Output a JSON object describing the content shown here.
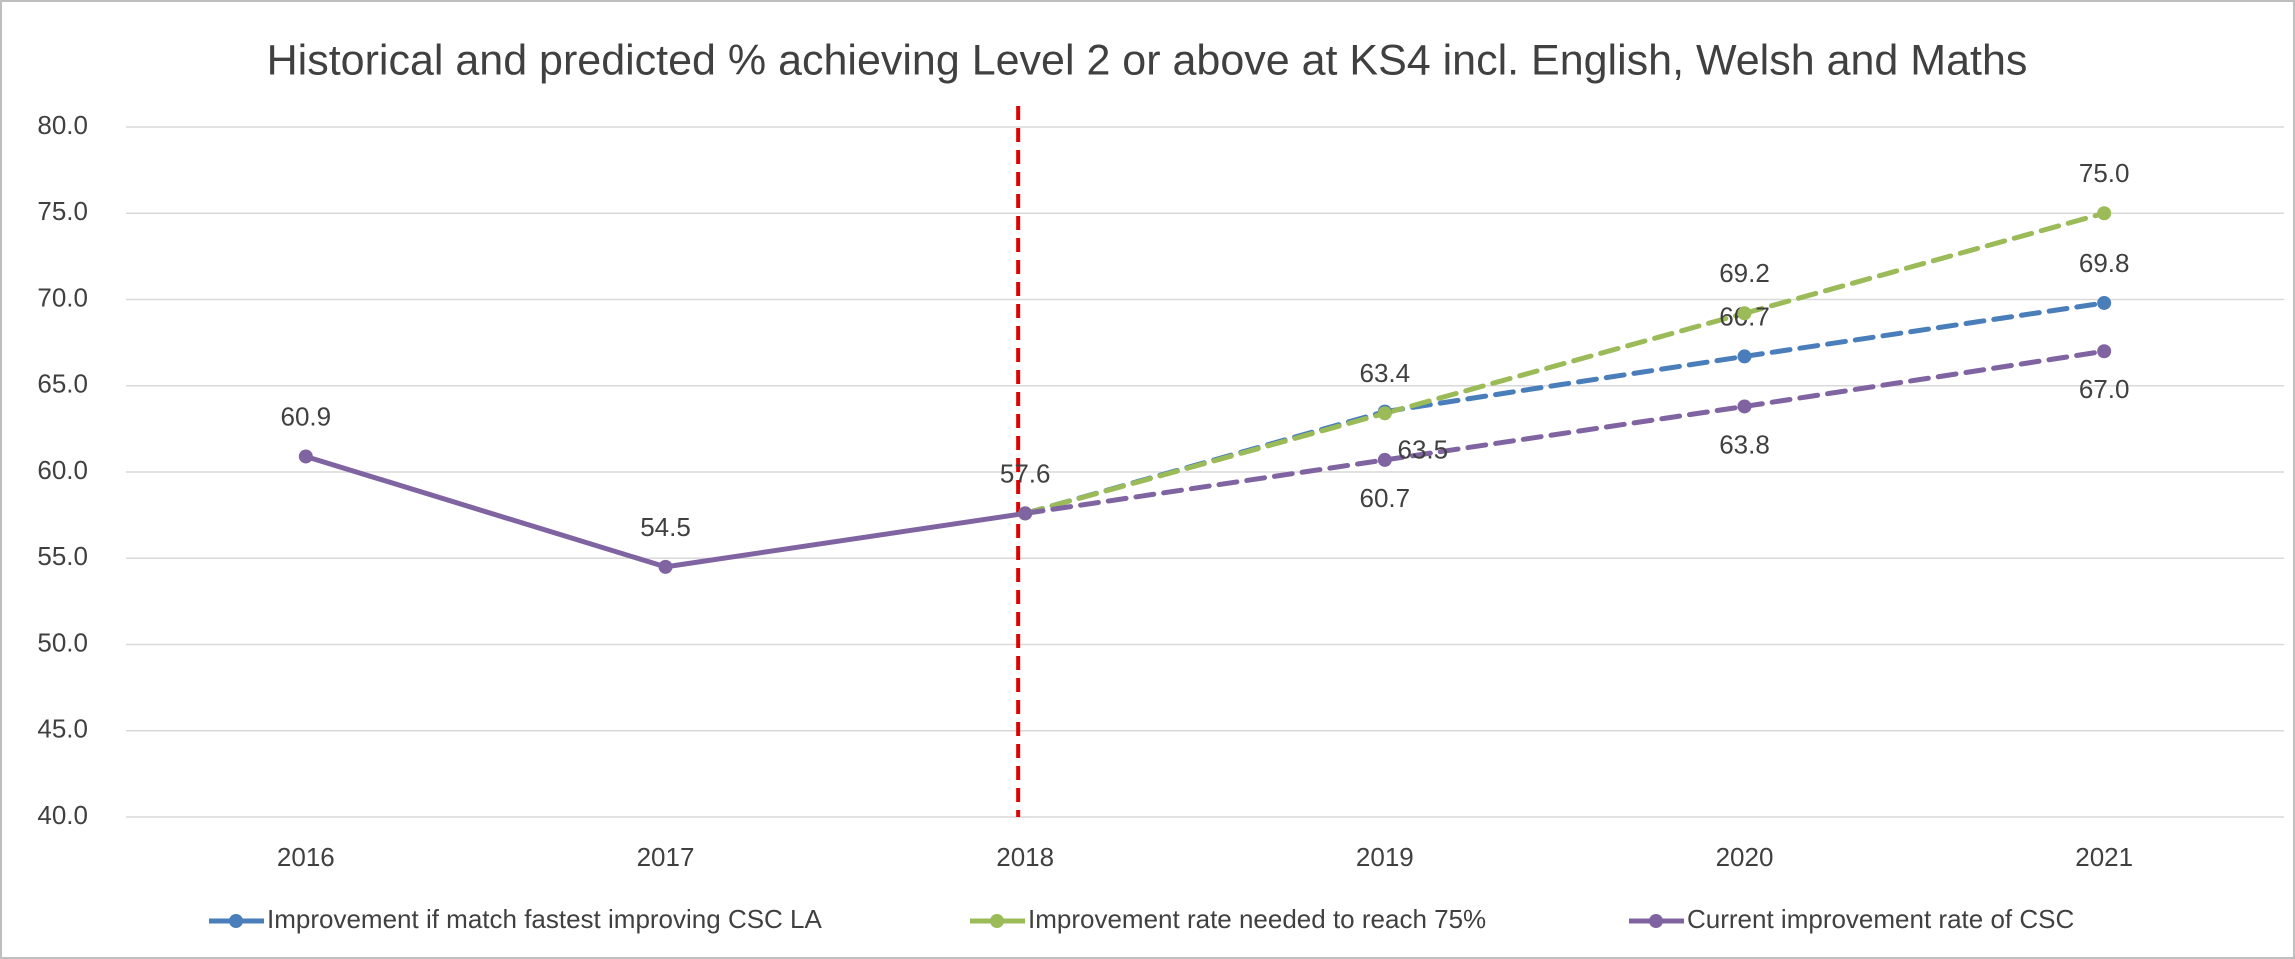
{
  "chart_data": {
    "type": "line",
    "title": "Historical and predicted % achieving Level 2 or above at KS4 incl. English, Welsh and Maths",
    "categories": [
      "2016",
      "2017",
      "2018",
      "2019",
      "2020",
      "2021"
    ],
    "series": [
      {
        "name": "Improvement if match fastest improving CSC LA",
        "color": "#4a7ebb",
        "values": [
          null,
          null,
          57.6,
          63.5,
          66.7,
          69.8
        ],
        "value_labels": [
          null,
          null,
          null,
          "63.5",
          "66.7",
          "69.8"
        ]
      },
      {
        "name": "Improvement rate needed to reach 75%",
        "color": "#9bbb59",
        "values": [
          null,
          null,
          57.6,
          63.4,
          69.2,
          75.0
        ],
        "value_labels": [
          null,
          null,
          null,
          "63.4",
          "69.2",
          "75.0"
        ]
      },
      {
        "name": "Current improvement rate of CSC",
        "color": "#8064a2",
        "values": [
          60.9,
          54.5,
          57.6,
          60.7,
          63.8,
          67.0
        ],
        "value_labels": [
          "60.9",
          "54.5",
          "57.6",
          "60.7",
          "63.8",
          "67.0"
        ]
      }
    ],
    "vline": {
      "x": "2018",
      "color": "#e00000"
    },
    "ylim": [
      40,
      80
    ],
    "yticks": [
      {
        "value": 40,
        "label": "40.0"
      },
      {
        "value": 45,
        "label": "45.0"
      },
      {
        "value": 50,
        "label": "50.0"
      },
      {
        "value": 55,
        "label": "55.0"
      },
      {
        "value": 60,
        "label": "60.0"
      },
      {
        "value": 65,
        "label": "65.0"
      },
      {
        "value": 70,
        "label": "70.0"
      },
      {
        "value": 75,
        "label": "75.0"
      },
      {
        "value": 80,
        "label": "80.0"
      }
    ],
    "grid": true,
    "legend": "bottom"
  }
}
